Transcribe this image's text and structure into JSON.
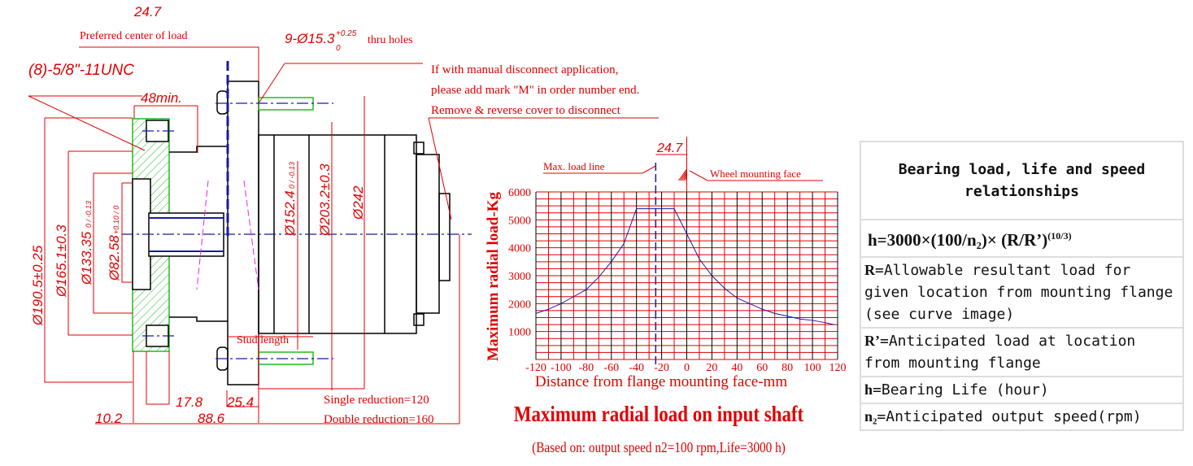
{
  "drawing": {
    "dims": {
      "preferred_load_offset": "24.7",
      "preferred_center_label": "Preferred center of load",
      "thru_holes": "9-Ø15.3",
      "thru_holes_tol_upper": "+0.25",
      "thru_holes_tol_lower": "0",
      "thru_holes_suffix": "thru holes",
      "tapped_holes": "(8)-5/8\"-11UNC",
      "min_engagement": "48min.",
      "d190": "Ø190.5±0.25",
      "d165": "Ø165.1±0.3",
      "d133": "Ø133.35",
      "d133_tol": "0 / -0.13",
      "d82": "Ø82.58",
      "d82_tol": "+0.10 / 0",
      "d152": "Ø152.4",
      "d152_tol": "0 / -0.13",
      "d203": "Ø203.2±0.3",
      "d242": "Ø242",
      "stud_length": "Stud length",
      "l17": "17.8",
      "l25": "25.4",
      "l10": "10.2",
      "l88": "88.6",
      "single": "Single reduction=120",
      "double": "Double reduction=160"
    },
    "note": [
      "If with manual disconnect application,",
      "please add mark \"M\" in order number end.",
      "Remove & reverse cover to disconnect"
    ]
  },
  "chart_data": {
    "type": "line",
    "title": "Maximum radial load on input shaft",
    "subtitle": "(Based on: output speed n2=100 rpm,Life=3000 h)",
    "xlabel": "Distance from flange mounting face-mm",
    "ylabel": "Maximum radial load-Kg",
    "xlim": [
      -120,
      120
    ],
    "ylim": [
      0,
      6000
    ],
    "xticks": [
      -120,
      -100,
      -80,
      -60,
      -40,
      -20,
      0,
      20,
      40,
      60,
      80,
      100,
      120
    ],
    "yticks": [
      1000,
      2000,
      3000,
      4000,
      5000,
      6000
    ],
    "grid": true,
    "x": [
      -120,
      -110,
      -100,
      -90,
      -80,
      -70,
      -60,
      -50,
      -40,
      -10,
      0,
      10,
      20,
      30,
      40,
      50,
      60,
      70,
      80,
      90,
      100,
      110,
      117
    ],
    "y": [
      1650,
      1800,
      2000,
      2250,
      2500,
      2950,
      3500,
      4150,
      5400,
      5400,
      4500,
      3600,
      3000,
      2550,
      2200,
      2000,
      1800,
      1650,
      1550,
      1450,
      1400,
      1320,
      1250
    ],
    "annotations": {
      "max_load_line": "Max. load line",
      "max_load_x": -24.7,
      "offset": "24.7",
      "wheel_face": "Wheel mounting face"
    },
    "colors": {
      "grid": "#e00000",
      "grid_major": "#000000",
      "curve": "#1a1aa0",
      "text": "#e00000"
    }
  },
  "table": {
    "title": "Bearing load, life and speed relationships",
    "formula": "h=3000×(100/n₂)× (R/R’)",
    "formula_exp": "(10/3)",
    "rows": [
      {
        "sym": "R",
        "text": "=Allowable resultant load for given location from mounting flange (see curve image)"
      },
      {
        "sym": "R’",
        "text": "=Anticipated load at location from mounting flange"
      },
      {
        "sym": "h",
        "text": "=Bearing Life (hour)"
      },
      {
        "sym": "n₂",
        "text": "=Anticipated output speed(rpm)"
      }
    ]
  }
}
